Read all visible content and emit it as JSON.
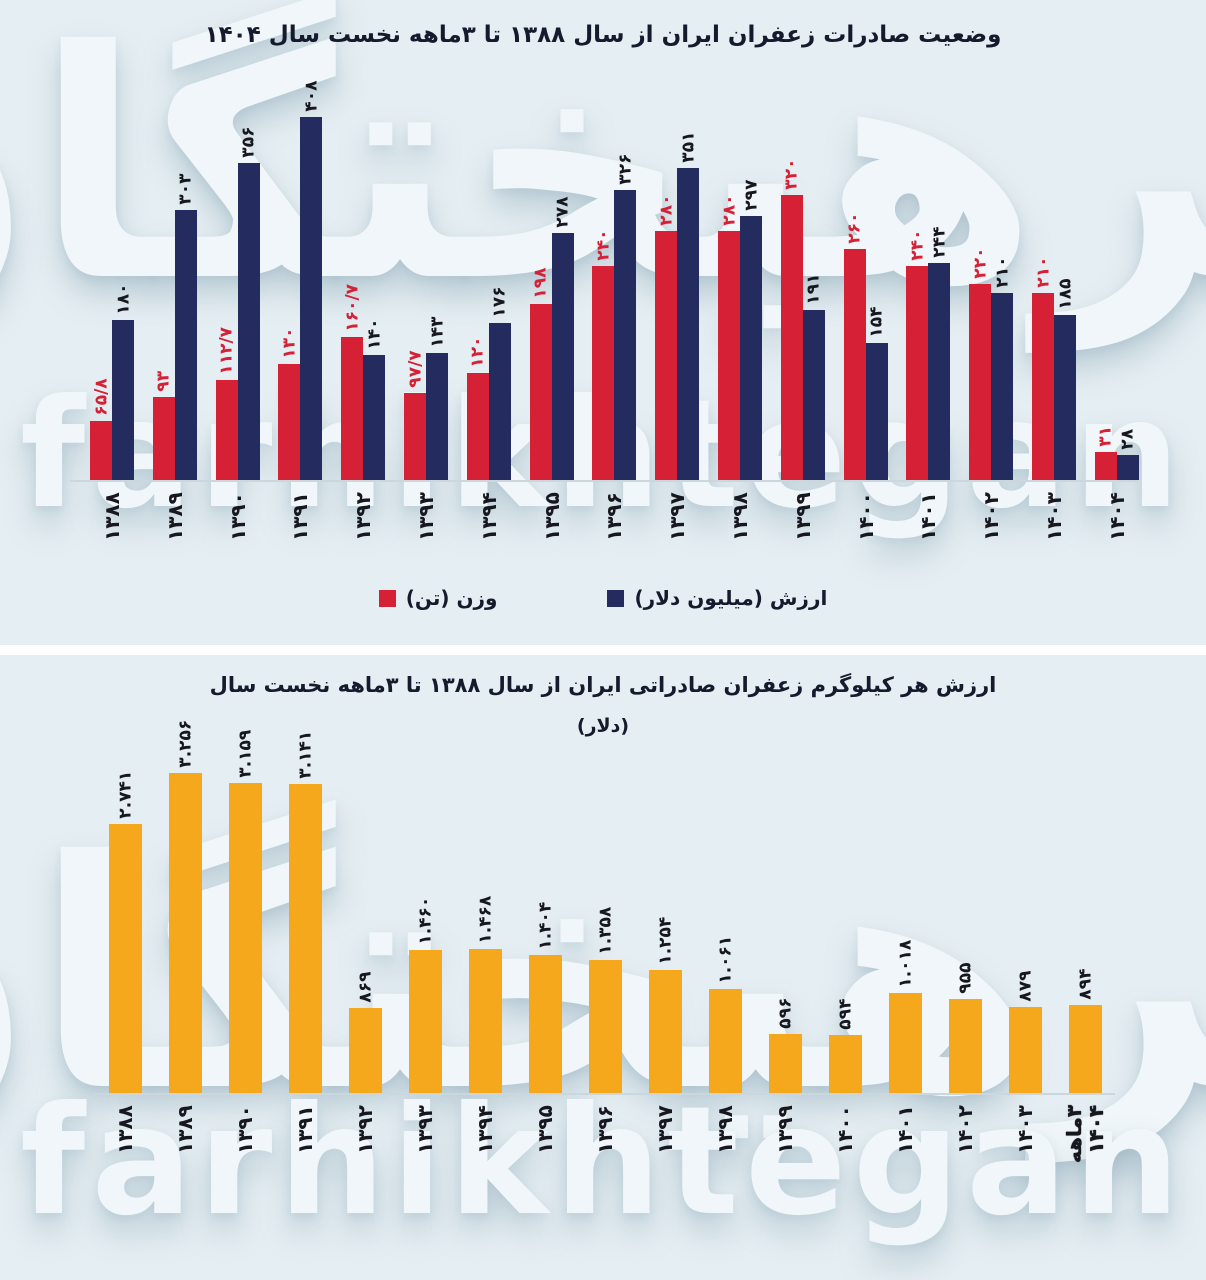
{
  "watermark": {
    "farsi": "فرهیختگان",
    "latin": "farhikhtegan"
  },
  "colors": {
    "background": "#e5eef2",
    "weight_red": "#d62035",
    "value_navy": "#242b5e",
    "price_yellow": "#f6a81c"
  },
  "chart_data": [
    {
      "type": "bar",
      "title": "وضعیت صادرات زعفران ایران از سال ۱۳۸۸ تا ۳ماهه نخست سال ۱۴۰۴",
      "categories": [
        "۱۳۸۸",
        "۱۳۸۹",
        "۱۳۹۰",
        "۱۳۹۱",
        "۱۳۹۲",
        "۱۳۹۳",
        "۱۳۹۴",
        "۱۳۹۵",
        "۱۳۹۶",
        "۱۳۹۷",
        "۱۳۹۸",
        "۱۳۹۹",
        "۱۴۰۰",
        "۱۴۰۱",
        "۱۴۰۲",
        "۱۴۰۳",
        "۱۴۰۴"
      ],
      "series": [
        {
          "name": "وزن (تن)",
          "color": "#d62035",
          "values": [
            65.8,
            93,
            112.7,
            130,
            160.7,
            97.7,
            120,
            198,
            240,
            280,
            280,
            320,
            260,
            240,
            220,
            210,
            31
          ],
          "value_labels": [
            "۶۵/۸",
            "۹۳",
            "۱۱۲/۷",
            "۱۳۰",
            "۱۶۰/۷",
            "۹۷/۷",
            "۱۲۰",
            "۱۹۸",
            "۲۴۰",
            "۲۸۰",
            "۲۸۰",
            "۳۲۰",
            "۲۶۰",
            "۲۴۰",
            "۲۲۰",
            "۲۱۰",
            "۳۱"
          ]
        },
        {
          "name": "ارزش (میلیون دلار)",
          "color": "#242b5e",
          "values": [
            180,
            303,
            356,
            408,
            140,
            143,
            176,
            278,
            326,
            351,
            297,
            191,
            154,
            244,
            210,
            185,
            28
          ],
          "value_labels": [
            "۱۸۰",
            "۳۰۳",
            "۳۵۶",
            "۴۰۸",
            "۱۴۰",
            "۱۴۳",
            "۱۷۶",
            "۲۷۸",
            "۳۲۶",
            "۳۵۱",
            "۲۹۷",
            "۱۹۱",
            "۱۵۴",
            "۲۴۴",
            "۲۱۰",
            "۱۸۵",
            "۲۸"
          ]
        }
      ],
      "ylim": [
        0,
        408
      ],
      "grid": false,
      "legend_position": "bottom"
    },
    {
      "type": "bar",
      "title": "ارزش هر کیلوگرم زعفران صادراتی ایران از سال ۱۳۸۸ تا ۳ماهه نخست سال",
      "subtitle": "(دلار)",
      "categories": [
        "۱۳۸۸",
        "۱۳۸۹",
        "۱۳۹۰",
        "۱۳۹۱",
        "۱۳۹۲",
        "۱۳۹۳",
        "۱۳۹۴",
        "۱۳۹۵",
        "۱۳۹۶",
        "۱۳۹۷",
        "۱۳۹۸",
        "۱۳۹۹",
        "۱۴۰۰",
        "۱۴۰۱",
        "۱۴۰۲",
        "۱۴۰۳",
        "۳ماهه ۱۴۰۴"
      ],
      "series": [
        {
          "name": "(دلار)",
          "color": "#f6a81c",
          "values": [
            2741,
            3256,
            3159,
            3141,
            869,
            1460,
            1468,
            1404,
            1358,
            1254,
            1061,
            596,
            594,
            1018,
            955,
            879,
            894
          ],
          "value_labels": [
            "۲.۷۴۱",
            "۳.۲۵۶",
            "۳.۱۵۹",
            "۳.۱۴۱",
            "۸۶۹",
            "۱.۴۶۰",
            "۱.۴۶۸",
            "۱.۴۰۴",
            "۱.۳۵۸",
            "۱.۲۵۴",
            "۱.۰۶۱",
            "۵۹۶",
            "۵۹۴",
            "۱.۰۱۸",
            "۹۵۵",
            "۸۷۹",
            "۸۹۴"
          ]
        }
      ],
      "ylim": [
        0,
        3300
      ],
      "grid": false,
      "legend_position": "none"
    }
  ]
}
